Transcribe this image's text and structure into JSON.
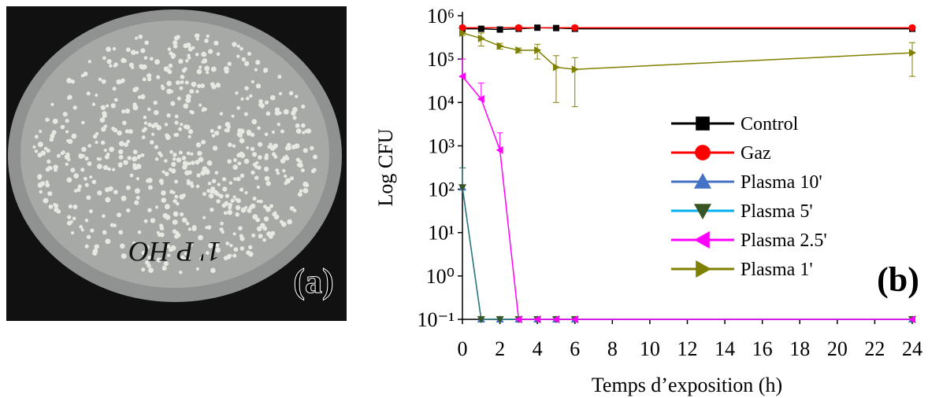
{
  "photo_label": "(a)",
  "plate_marking": "1' P HO",
  "chart_data": {
    "type": "line",
    "panel_label": "(b)",
    "x_label": "Temps d’exposition  (h)",
    "y_label": "Log CFU",
    "log_y": true,
    "xlim": [
      0,
      24
    ],
    "xticks": [
      0,
      2,
      4,
      6,
      8,
      10,
      12,
      14,
      16,
      18,
      20,
      22,
      24
    ],
    "ylim": [
      0.1,
      1000000
    ],
    "yticks": [
      {
        "value": 0.1,
        "label": "10⁻¹"
      },
      {
        "value": 1,
        "label": "10⁰"
      },
      {
        "value": 10,
        "label": "10¹"
      },
      {
        "value": 100,
        "label": "10²"
      },
      {
        "value": 1000,
        "label": "10³"
      },
      {
        "value": 10000,
        "label": "10⁴"
      },
      {
        "value": 100000,
        "label": "10⁵"
      },
      {
        "value": 1000000,
        "label": "10⁶"
      }
    ],
    "x": [
      0,
      1,
      2,
      3,
      4,
      5,
      6,
      24
    ],
    "series": [
      {
        "name": "Control",
        "color": "#000000",
        "marker": "square",
        "values": [
          500000,
          500000,
          480000,
          500000,
          530000,
          520000,
          500000,
          500000
        ]
      },
      {
        "name": "Gaz",
        "color": "#ff0000",
        "marker": "circle",
        "x": [
          0,
          3,
          6,
          24
        ],
        "values": [
          530000,
          530000,
          530000,
          530000
        ]
      },
      {
        "name": "Plasma 10'",
        "color": "#4472c4",
        "marker": "triangle-up",
        "values": [
          110,
          0.1,
          0.1,
          0.1,
          0.1,
          0.1,
          0.1,
          0.1
        ]
      },
      {
        "name": "Plasma 5'",
        "color": "#00b0f0",
        "marker_color": "#375623",
        "line_color": "#2e7b7b",
        "marker": "triangle-down",
        "values": [
          110,
          0.1,
          0.1,
          0.1,
          0.1,
          0.1,
          0.1,
          0.1
        ],
        "errors": [
          200,
          null,
          null,
          null,
          null,
          null,
          null,
          null
        ]
      },
      {
        "name": "Plasma 2.5'",
        "color": "#ff00ff",
        "marker": "triangle-left",
        "values": [
          40000,
          12000,
          800,
          0.1,
          0.1,
          0.1,
          0.1,
          0.1
        ],
        "errors": [
          60000,
          16000,
          1200,
          null,
          null,
          null,
          null,
          null
        ]
      },
      {
        "name": "Plasma 1'",
        "color": "#808000",
        "marker": "triangle-right",
        "values": [
          400000,
          300000,
          200000,
          160000,
          160000,
          65000,
          58000,
          140000
        ],
        "errors": [
          50000,
          100000,
          30000,
          20000,
          60000,
          55000,
          50000,
          100000
        ]
      }
    ]
  }
}
